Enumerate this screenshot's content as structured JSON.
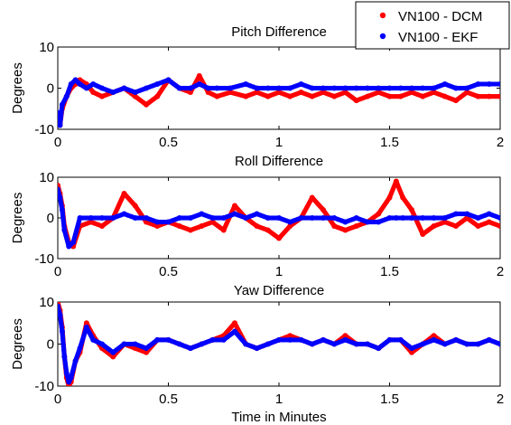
{
  "legend": {
    "entries": [
      {
        "label": "VN100 - DCM",
        "color": "#ff0000"
      },
      {
        "label": "VN100 - EKF",
        "color": "#0000ff"
      }
    ]
  },
  "chart_data": [
    {
      "type": "scatter",
      "title": "Pitch Difference",
      "xlabel": "",
      "ylabel": "Degrees",
      "xlim": [
        0,
        2
      ],
      "ylim": [
        -10,
        10
      ],
      "xticks": [
        0,
        0.5,
        1,
        1.5,
        2
      ],
      "yticks": [
        -10,
        0,
        10
      ],
      "xtick_labels": [
        "0",
        "0.5",
        "1",
        "1.5",
        "2"
      ],
      "ytick_labels": [
        "-10",
        "0",
        "10"
      ],
      "series": [
        {
          "name": "VN100 - DCM",
          "color": "#ff0000",
          "x": [
            0,
            0.01,
            0.02,
            0.04,
            0.06,
            0.08,
            0.1,
            0.13,
            0.16,
            0.2,
            0.25,
            0.3,
            0.35,
            0.4,
            0.45,
            0.5,
            0.55,
            0.6,
            0.64,
            0.68,
            0.72,
            0.78,
            0.85,
            0.9,
            0.95,
            1.0,
            1.05,
            1.1,
            1.15,
            1.2,
            1.25,
            1.3,
            1.35,
            1.4,
            1.45,
            1.5,
            1.55,
            1.6,
            1.65,
            1.7,
            1.75,
            1.8,
            1.85,
            1.9,
            1.95,
            2.0
          ],
          "y": [
            -8,
            -9,
            -5,
            -2,
            0,
            1,
            2,
            1,
            -1,
            -2,
            -1,
            0,
            -2,
            -4,
            -2,
            2,
            0,
            -1,
            3,
            -1,
            -2,
            -1,
            -2,
            -1,
            -2,
            -1,
            -2,
            -1,
            -2,
            -1,
            -2,
            -1,
            -3,
            -2,
            -1,
            -2,
            -2,
            -1,
            -2,
            -1,
            -2,
            -3,
            -1,
            -2,
            -2,
            -2
          ]
        },
        {
          "name": "VN100 - EKF",
          "color": "#0000ff",
          "x": [
            0,
            0.01,
            0.02,
            0.04,
            0.06,
            0.08,
            0.1,
            0.13,
            0.16,
            0.2,
            0.25,
            0.3,
            0.35,
            0.4,
            0.45,
            0.5,
            0.55,
            0.6,
            0.64,
            0.68,
            0.72,
            0.78,
            0.85,
            0.9,
            0.95,
            1.0,
            1.05,
            1.1,
            1.15,
            1.2,
            1.25,
            1.3,
            1.35,
            1.4,
            1.45,
            1.5,
            1.55,
            1.6,
            1.65,
            1.7,
            1.75,
            1.8,
            1.85,
            1.9,
            1.95,
            2.0
          ],
          "y": [
            -6,
            -9,
            -4,
            -2,
            1,
            2,
            1,
            0,
            1,
            0,
            -1,
            0,
            -1,
            0,
            1,
            2,
            0,
            0,
            1,
            0,
            0,
            0,
            1,
            0,
            0,
            0,
            0,
            1,
            0,
            0,
            0,
            0,
            0,
            0,
            0,
            0,
            0,
            0,
            0,
            0,
            1,
            0,
            0,
            1,
            1,
            1
          ]
        }
      ]
    },
    {
      "type": "scatter",
      "title": "Roll Difference",
      "xlabel": "",
      "ylabel": "Degrees",
      "xlim": [
        0,
        2
      ],
      "ylim": [
        -10,
        10
      ],
      "xticks": [
        0,
        0.5,
        1,
        1.5,
        2
      ],
      "yticks": [
        -10,
        0,
        10
      ],
      "xtick_labels": [
        "0",
        "0.5",
        "1",
        "1.5",
        "2"
      ],
      "ytick_labels": [
        "-10",
        "0",
        "10"
      ],
      "series": [
        {
          "name": "VN100 - DCM",
          "color": "#ff0000",
          "x": [
            0,
            0.01,
            0.02,
            0.03,
            0.05,
            0.07,
            0.1,
            0.15,
            0.2,
            0.25,
            0.3,
            0.35,
            0.4,
            0.45,
            0.5,
            0.55,
            0.6,
            0.65,
            0.7,
            0.75,
            0.8,
            0.85,
            0.9,
            0.95,
            1.0,
            1.05,
            1.1,
            1.15,
            1.2,
            1.25,
            1.3,
            1.35,
            1.4,
            1.45,
            1.5,
            1.53,
            1.56,
            1.6,
            1.65,
            1.7,
            1.75,
            1.8,
            1.85,
            1.9,
            1.95,
            2.0
          ],
          "y": [
            8,
            6,
            3,
            -2,
            -6,
            -7,
            -2,
            -1,
            -2,
            0,
            6,
            3,
            -1,
            -2,
            -1,
            -2,
            -3,
            -2,
            -1,
            -3,
            3,
            0,
            -2,
            -3,
            -5,
            -2,
            0,
            5,
            2,
            -2,
            -3,
            -2,
            -1,
            1,
            5,
            9,
            5,
            2,
            -4,
            -2,
            -1,
            -2,
            0,
            -2,
            -1,
            -2
          ]
        },
        {
          "name": "VN100 - EKF",
          "color": "#0000ff",
          "x": [
            0,
            0.01,
            0.02,
            0.03,
            0.05,
            0.07,
            0.1,
            0.15,
            0.2,
            0.25,
            0.3,
            0.35,
            0.4,
            0.45,
            0.5,
            0.55,
            0.6,
            0.65,
            0.7,
            0.75,
            0.8,
            0.85,
            0.9,
            0.95,
            1.0,
            1.05,
            1.1,
            1.15,
            1.2,
            1.25,
            1.3,
            1.35,
            1.4,
            1.45,
            1.5,
            1.53,
            1.56,
            1.6,
            1.65,
            1.7,
            1.75,
            1.8,
            1.85,
            1.9,
            1.95,
            2.0
          ],
          "y": [
            7,
            5,
            2,
            -3,
            -7,
            -6,
            0,
            0,
            0,
            0,
            1,
            0,
            0,
            -1,
            -1,
            0,
            0,
            1,
            0,
            0,
            1,
            0,
            1,
            0,
            0,
            -1,
            0,
            0,
            0,
            0,
            -1,
            0,
            -1,
            -1,
            0,
            0,
            0,
            0,
            0,
            0,
            0,
            1,
            1,
            0,
            1,
            0
          ]
        }
      ]
    },
    {
      "type": "scatter",
      "title": "Yaw Difference",
      "xlabel": "Time in Minutes",
      "ylabel": "Degrees",
      "xlim": [
        0,
        2
      ],
      "ylim": [
        -10,
        10
      ],
      "xticks": [
        0,
        0.5,
        1,
        1.5,
        2
      ],
      "yticks": [
        -10,
        0,
        10
      ],
      "xtick_labels": [
        "0",
        "0.5",
        "1",
        "1.5",
        "2"
      ],
      "ytick_labels": [
        "-10",
        "0",
        "10"
      ],
      "series": [
        {
          "name": "VN100 - DCM",
          "color": "#ff0000",
          "x": [
            0,
            0.01,
            0.02,
            0.03,
            0.04,
            0.05,
            0.06,
            0.08,
            0.1,
            0.13,
            0.16,
            0.2,
            0.25,
            0.3,
            0.35,
            0.4,
            0.45,
            0.5,
            0.55,
            0.6,
            0.65,
            0.7,
            0.75,
            0.8,
            0.85,
            0.9,
            0.95,
            1.0,
            1.05,
            1.1,
            1.15,
            1.2,
            1.25,
            1.3,
            1.35,
            1.4,
            1.45,
            1.5,
            1.55,
            1.6,
            1.65,
            1.7,
            1.75,
            1.8,
            1.85,
            1.9,
            1.95,
            2.0
          ],
          "y": [
            10,
            8,
            4,
            -3,
            -8,
            -10,
            -9,
            -4,
            -2,
            5,
            2,
            -1,
            -3,
            0,
            -1,
            -2,
            1,
            1,
            0,
            -1,
            0,
            1,
            2,
            5,
            0,
            -1,
            0,
            1,
            2,
            1,
            0,
            1,
            0,
            2,
            0,
            0,
            -1,
            1,
            1,
            -2,
            0,
            2,
            0,
            1,
            0,
            0,
            1,
            0
          ]
        },
        {
          "name": "VN100 - EKF",
          "color": "#0000ff",
          "x": [
            0,
            0.01,
            0.02,
            0.03,
            0.04,
            0.05,
            0.06,
            0.08,
            0.1,
            0.13,
            0.16,
            0.2,
            0.25,
            0.3,
            0.35,
            0.4,
            0.45,
            0.5,
            0.55,
            0.6,
            0.65,
            0.7,
            0.75,
            0.8,
            0.85,
            0.9,
            0.95,
            1.0,
            1.05,
            1.1,
            1.15,
            1.2,
            1.25,
            1.3,
            1.35,
            1.4,
            1.45,
            1.5,
            1.55,
            1.6,
            1.65,
            1.7,
            1.75,
            1.8,
            1.85,
            1.9,
            1.95,
            2.0
          ],
          "y": [
            9,
            7,
            3,
            -3,
            -7,
            -9,
            -8,
            -4,
            -1,
            4,
            1,
            0,
            -2,
            0,
            0,
            -1,
            1,
            1,
            0,
            -1,
            0,
            1,
            1,
            3,
            0,
            -1,
            0,
            1,
            1,
            1,
            0,
            1,
            0,
            1,
            0,
            0,
            -1,
            1,
            1,
            -1,
            0,
            1,
            0,
            1,
            0,
            0,
            1,
            0
          ]
        }
      ]
    }
  ]
}
